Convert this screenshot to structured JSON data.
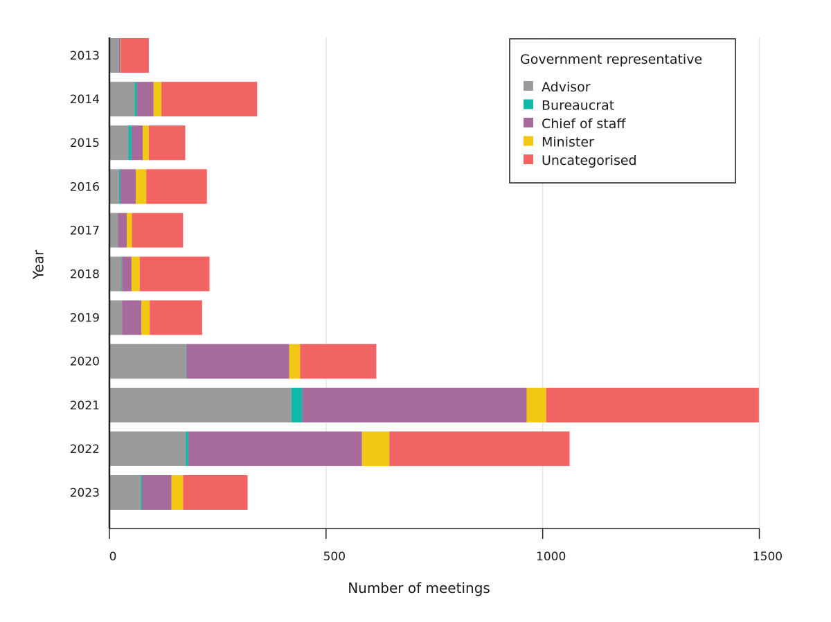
{
  "chart_data": {
    "type": "bar",
    "orientation": "horizontal",
    "stacked": true,
    "title": "",
    "xlabel": "Number of meetings",
    "ylabel": "Year",
    "xlim": [
      0,
      1500
    ],
    "xticks": [
      0,
      500,
      1000,
      1500
    ],
    "grid": true,
    "categories": [
      "2013",
      "2014",
      "2015",
      "2016",
      "2017",
      "2018",
      "2019",
      "2020",
      "2021",
      "2022",
      "2023"
    ],
    "legend": {
      "title": "Government representative",
      "placement": "top-right"
    },
    "series": [
      {
        "name": "Advisor",
        "color": "#9b9b9b",
        "values": [
          22,
          58,
          44,
          22,
          20,
          28,
          29,
          177,
          420,
          176,
          72
        ]
      },
      {
        "name": "Bureaucrat",
        "color": "#10b8a8",
        "values": [
          0,
          5,
          7,
          3,
          0,
          1,
          0,
          1,
          25,
          6,
          3
        ]
      },
      {
        "name": "Chief of staff",
        "color": "#a66b9b",
        "values": [
          4,
          39,
          26,
          36,
          20,
          22,
          45,
          237,
          518,
          401,
          68
        ]
      },
      {
        "name": "Minister",
        "color": "#f2c814",
        "values": [
          1,
          18,
          14,
          24,
          12,
          19,
          19,
          25,
          45,
          63,
          27
        ]
      },
      {
        "name": "Uncategorised",
        "color": "#f26463",
        "values": [
          64,
          221,
          84,
          140,
          118,
          161,
          121,
          176,
          491,
          416,
          149
        ]
      }
    ]
  }
}
